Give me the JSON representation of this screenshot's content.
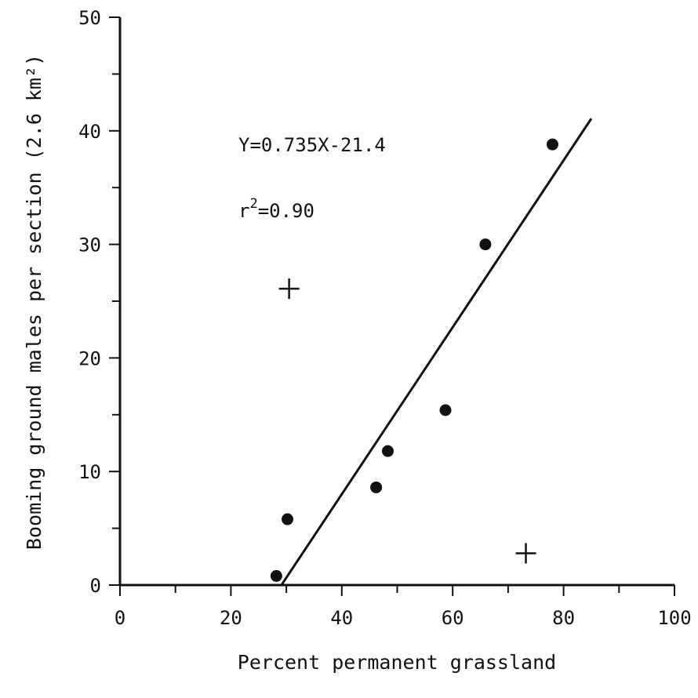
{
  "chart_data": {
    "type": "scatter",
    "xlabel": "Percent permanent grassland",
    "ylabel": "Booming ground males per section (2.6 km²)",
    "xlim": [
      0,
      100
    ],
    "ylim": [
      0,
      50
    ],
    "x_ticks": [
      0,
      20,
      40,
      60,
      80,
      100
    ],
    "y_ticks": [
      0,
      10,
      20,
      30,
      40,
      50
    ],
    "grid": false,
    "series": [
      {
        "marker": "circle",
        "points": [
          {
            "x": 28.2,
            "y": 0.8
          },
          {
            "x": 30.2,
            "y": 5.8
          },
          {
            "x": 46.2,
            "y": 8.6
          },
          {
            "x": 48.3,
            "y": 11.8
          },
          {
            "x": 58.7,
            "y": 15.4
          },
          {
            "x": 65.9,
            "y": 30.0
          },
          {
            "x": 78.0,
            "y": 38.8
          }
        ]
      },
      {
        "marker": "plus",
        "points": [
          {
            "x": 30.5,
            "y": 26.1
          },
          {
            "x": 73.2,
            "y": 2.8
          }
        ]
      }
    ],
    "regression": {
      "slope": 0.735,
      "intercept": -21.4,
      "x_range": [
        29.1,
        85.0
      ],
      "equation": "Y=0.735X-21.4",
      "r2_label": "r",
      "r2_exp": "2",
      "r2_value": "=0.90"
    }
  }
}
